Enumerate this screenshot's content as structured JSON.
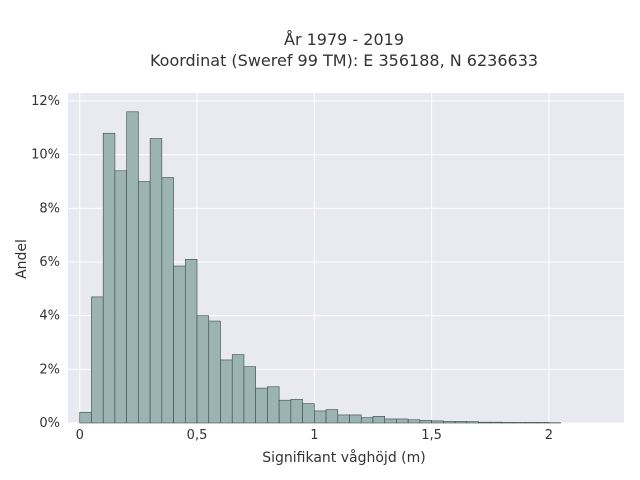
{
  "chart_data": {
    "type": "bar",
    "title_line1": "År 1979 - 2019",
    "title_line2": "Koordinat (Sweref 99 TM): E 356188, N 6236633",
    "xlabel": "Signifikant våghöjd (m)",
    "ylabel": "Andel",
    "bin_width": 0.05,
    "x_first_bin_start": 0.0,
    "values": [
      0.4,
      4.7,
      10.8,
      9.4,
      11.6,
      9.0,
      10.6,
      9.15,
      5.85,
      6.1,
      4.0,
      3.8,
      2.35,
      2.55,
      2.1,
      1.3,
      1.35,
      0.85,
      0.88,
      0.72,
      0.45,
      0.5,
      0.3,
      0.3,
      0.2,
      0.25,
      0.15,
      0.15,
      0.12,
      0.1,
      0.08,
      0.06,
      0.06,
      0.05,
      0.03,
      0.03,
      0.02,
      0.02,
      0.02,
      0.02,
      0.01
    ],
    "xlim": [
      -0.05,
      2.32
    ],
    "ylim": [
      0,
      12.3
    ],
    "x_ticks": [
      {
        "value": 0,
        "label": "0"
      },
      {
        "value": 0.5,
        "label": "0,5"
      },
      {
        "value": 1,
        "label": "1"
      },
      {
        "value": 1.5,
        "label": "1,5"
      },
      {
        "value": 2,
        "label": "2"
      }
    ],
    "y_ticks": [
      {
        "value": 0,
        "label": "0%"
      },
      {
        "value": 2,
        "label": "2%"
      },
      {
        "value": 4,
        "label": "4%"
      },
      {
        "value": 6,
        "label": "6%"
      },
      {
        "value": 8,
        "label": "8%"
      },
      {
        "value": 10,
        "label": "10%"
      },
      {
        "value": 12,
        "label": "12%"
      }
    ],
    "grid": true,
    "colors": {
      "bar_fill": "#9bb3b2",
      "bar_stroke": "#3a4a4a",
      "plot_bg": "#e9e9f1",
      "grid": "#ffffff"
    }
  }
}
